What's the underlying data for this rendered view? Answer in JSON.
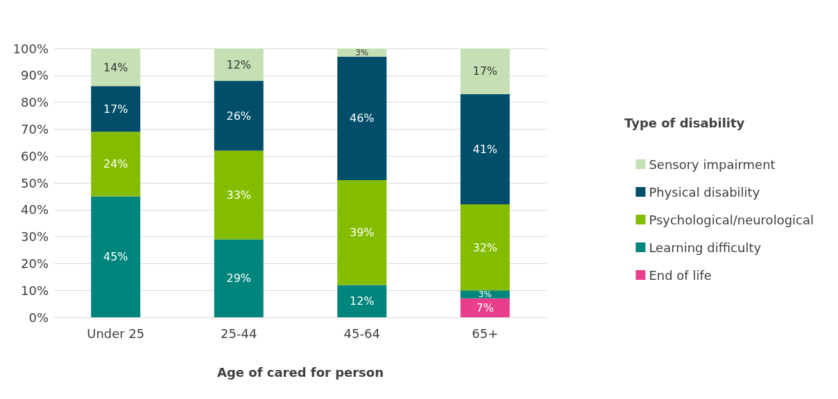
{
  "chart_data": {
    "type": "bar",
    "stacked": true,
    "xlabel": "Age of cared for person",
    "legend_title": "Type of disability",
    "categories": [
      "Under 25",
      "25-44",
      "45-64",
      "65+"
    ],
    "series": [
      {
        "name": "End of life",
        "color": "#e83e8c",
        "values": [
          null,
          null,
          null,
          7
        ],
        "value_labels": [
          null,
          null,
          null,
          "7%"
        ]
      },
      {
        "name": "Learning difficulty",
        "color": "#00857c",
        "values": [
          45,
          29,
          12,
          3
        ],
        "value_labels": [
          "45%",
          "29%",
          "12%",
          "3%"
        ]
      },
      {
        "name": "Psychological/neurological",
        "color": "#84bd00",
        "values": [
          24,
          33,
          39,
          32
        ],
        "value_labels": [
          "24%",
          "33%",
          "39%",
          "32%"
        ]
      },
      {
        "name": "Physical disability",
        "color": "#004e6a",
        "values": [
          17,
          26,
          46,
          41
        ],
        "value_labels": [
          "17%",
          "26%",
          "46%",
          "41%"
        ]
      },
      {
        "name": "Sensory impairment",
        "color": "#c5e0b4",
        "values": [
          14,
          12,
          3,
          17
        ],
        "value_labels": [
          "14%",
          "12%",
          "3%",
          "17%"
        ]
      }
    ],
    "ylim": [
      0,
      100
    ],
    "yticks": [
      {
        "value": 0,
        "label": "0%"
      },
      {
        "value": 10,
        "label": "10%"
      },
      {
        "value": 20,
        "label": "20%"
      },
      {
        "value": 30,
        "label": "30%"
      },
      {
        "value": 40,
        "label": "40%"
      },
      {
        "value": 50,
        "label": "50%"
      },
      {
        "value": 60,
        "label": "60%"
      },
      {
        "value": 70,
        "label": "70%"
      },
      {
        "value": 80,
        "label": "80%"
      },
      {
        "value": 90,
        "label": "90%"
      },
      {
        "value": 100,
        "label": "100%"
      }
    ],
    "grid": "y",
    "legend": "right"
  }
}
